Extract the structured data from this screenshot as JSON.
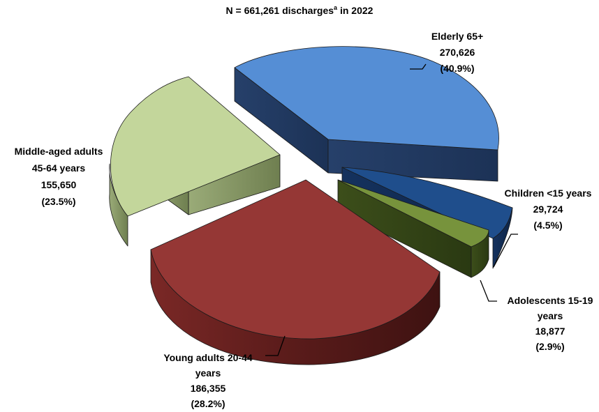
{
  "chart_data": {
    "type": "pie",
    "style": "3d-exploded",
    "title": "N = 661,261 discharges",
    "title_superscript": "a",
    "title_suffix": " in 2022",
    "slices": [
      {
        "label": "Elderly 65+",
        "value": 270626,
        "percent": 40.9,
        "value_text": "270,626",
        "percent_text": "(40.9%)",
        "color": "#558ed5"
      },
      {
        "label": "Children <15 years",
        "value": 29724,
        "percent": 4.5,
        "value_text": "29,724",
        "percent_text": "(4.5%)",
        "color": "#1f4e8c"
      },
      {
        "label": "Adolescents 15-19 years",
        "value": 18877,
        "percent": 2.9,
        "value_text": "18,877",
        "percent_text": "(2.9%)",
        "color": "#77933c"
      },
      {
        "label": "Young adults 20-44 years",
        "value": 186355,
        "percent": 28.2,
        "value_text": "186,355",
        "percent_text": "(28.2%)",
        "color": "#953735"
      },
      {
        "label": "Middle-aged adults 45-64 years",
        "value": 155650,
        "percent": 23.5,
        "value_text": "155,650",
        "percent_text": "(23.5%)",
        "color": "#c3d69b"
      }
    ]
  },
  "label_lines": {
    "elderly": [
      "Elderly 65+",
      "270,626",
      "(40.9%)"
    ],
    "children": [
      "Children <15 years",
      "29,724",
      "(4.5%)"
    ],
    "adolescents": [
      "Adolescents 15-19",
      "years",
      "18,877",
      "(2.9%)"
    ],
    "young": [
      "Young adults 20-44",
      "years",
      "186,355",
      "(28.2%)"
    ],
    "middle": [
      "Middle-aged adults",
      "45-64 years",
      "155,650",
      "(23.5%)"
    ]
  }
}
